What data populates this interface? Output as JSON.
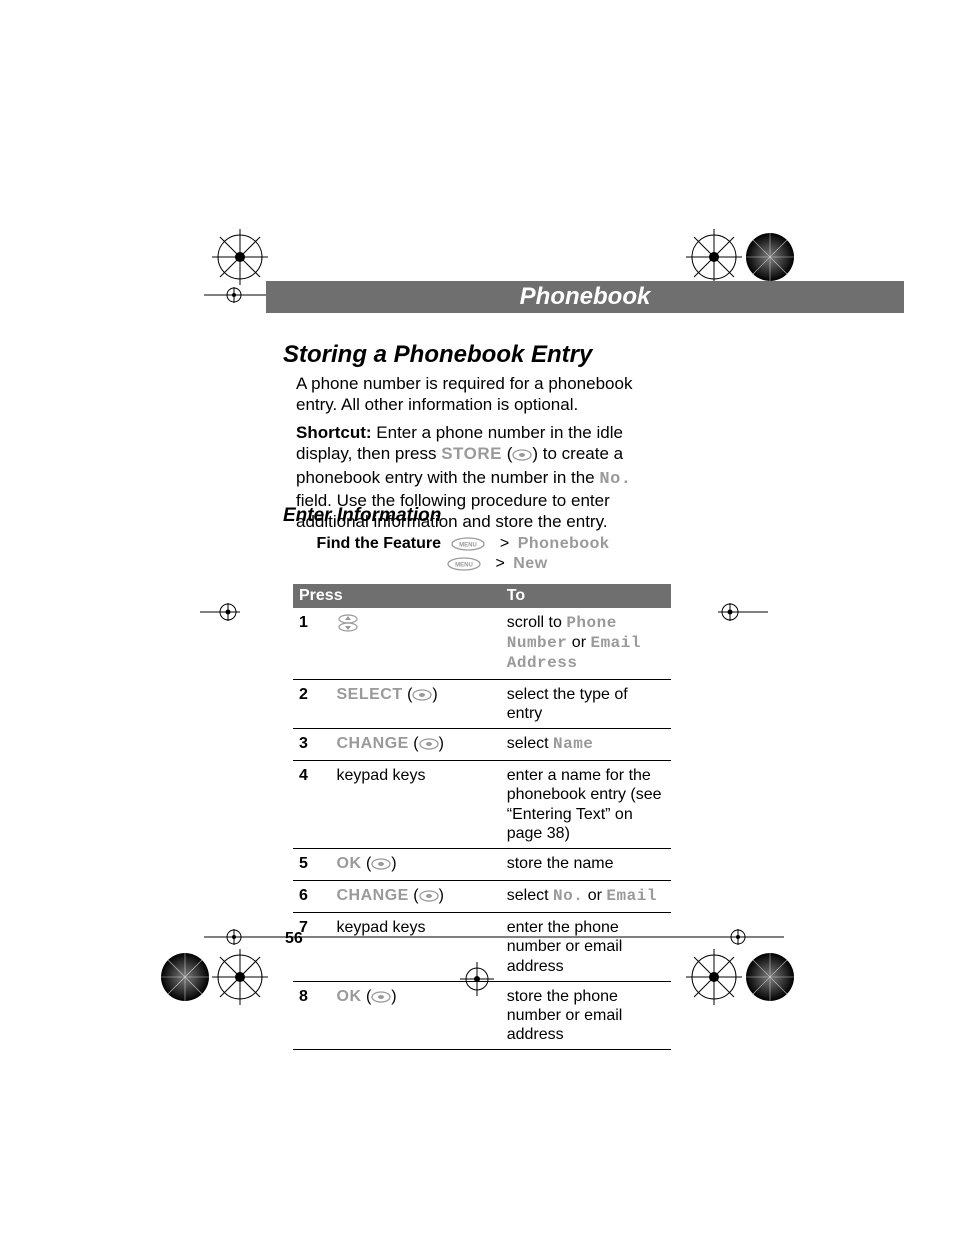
{
  "colors": {
    "bar_bg": "#6f6f6f",
    "bar_fg": "#ffffff",
    "grey_text": "#9a9a9a",
    "rule": "#000000"
  },
  "titlebar": "Phonebook",
  "h1": "Storing a Phonebook Entry",
  "intro": "A phone number is required for a phonebook entry. All other information is optional.",
  "shortcut": {
    "label": "Shortcut:",
    "part1": " Enter a phone number in the idle display, then press ",
    "store": "STORE",
    "part2": " to create a phonebook entry with the number in the ",
    "nofield": "No.",
    "part3": " field. Use the following procedure to enter additional information and store the entry."
  },
  "h2": "Enter Information",
  "find": {
    "label": "Find the Feature",
    "menu_label": "MENU",
    "gt": ">",
    "item1": "Phonebook",
    "item2": "New"
  },
  "table": {
    "head_press": "Press",
    "head_to": "To",
    "rows": [
      {
        "n": "1",
        "press_type": "scroll",
        "press": "",
        "to_pre": "scroll to ",
        "to_code1": "Phone Number",
        "to_mid": " or ",
        "to_code2": "Email Address",
        "to_post": ""
      },
      {
        "n": "2",
        "press_type": "soft",
        "press": "SELECT",
        "to_pre": "select the type of entry",
        "to_code1": "",
        "to_mid": "",
        "to_code2": "",
        "to_post": ""
      },
      {
        "n": "3",
        "press_type": "soft",
        "press": "CHANGE",
        "to_pre": "select ",
        "to_code1": "Name",
        "to_mid": "",
        "to_code2": "",
        "to_post": ""
      },
      {
        "n": "4",
        "press_type": "text",
        "press": "keypad keys",
        "to_pre": "enter a name for the phonebook entry (see “Entering Text” on page 38)",
        "to_code1": "",
        "to_mid": "",
        "to_code2": "",
        "to_post": ""
      },
      {
        "n": "5",
        "press_type": "soft",
        "press": "OK",
        "to_pre": "store the name",
        "to_code1": "",
        "to_mid": "",
        "to_code2": "",
        "to_post": ""
      },
      {
        "n": "6",
        "press_type": "soft",
        "press": "CHANGE",
        "to_pre": "select ",
        "to_code1": "No.",
        "to_mid": " or ",
        "to_code2": "Email",
        "to_post": ""
      },
      {
        "n": "7",
        "press_type": "text",
        "press": "keypad keys",
        "to_pre": "enter the phone number or email address",
        "to_code1": "",
        "to_mid": "",
        "to_code2": "",
        "to_post": ""
      },
      {
        "n": "8",
        "press_type": "soft",
        "press": "OK",
        "to_pre": "store the phone number or email address",
        "to_code1": "",
        "to_mid": "",
        "to_code2": "",
        "to_post": ""
      }
    ]
  },
  "pagenum": "56"
}
